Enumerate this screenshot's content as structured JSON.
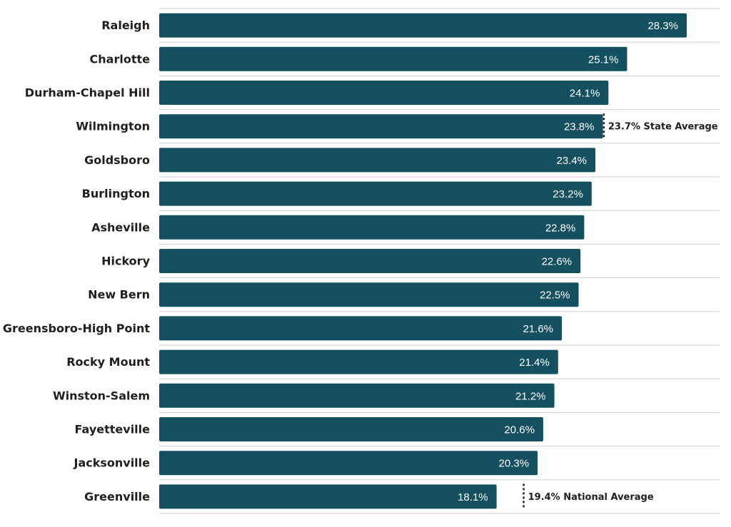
{
  "chart_data": {
    "type": "bar",
    "orientation": "horizontal",
    "title": "",
    "xlabel": "",
    "ylabel": "",
    "xlim": [
      0,
      32
    ],
    "grid": false,
    "bar_color": "#14505f",
    "categories": [
      "Raleigh",
      "Charlotte",
      "Durham-Chapel Hill",
      "Wilmington",
      "Goldsboro",
      "Burlington",
      "Asheville",
      "Hickory",
      "New Bern",
      "Greensboro-High Point",
      "Rocky Mount",
      "Winston-Salem",
      "Fayetteville",
      "Jacksonville",
      "Greenville"
    ],
    "values": [
      28.3,
      25.1,
      24.1,
      23.8,
      23.4,
      23.2,
      22.8,
      22.6,
      22.5,
      21.6,
      21.4,
      21.2,
      20.6,
      20.3,
      18.1
    ],
    "value_labels": [
      "28.3%",
      "25.1%",
      "24.1%",
      "23.8%",
      "23.4%",
      "23.2%",
      "22.8%",
      "22.6%",
      "22.5%",
      "21.6%",
      "21.4%",
      "21.2%",
      "20.6%",
      "20.3%",
      "18.1%"
    ],
    "reference_lines": [
      {
        "value": 23.7,
        "label": "23.7% State Average",
        "row": 3
      },
      {
        "value": 19.4,
        "label": "19.4% National Average",
        "row": 14
      }
    ]
  }
}
